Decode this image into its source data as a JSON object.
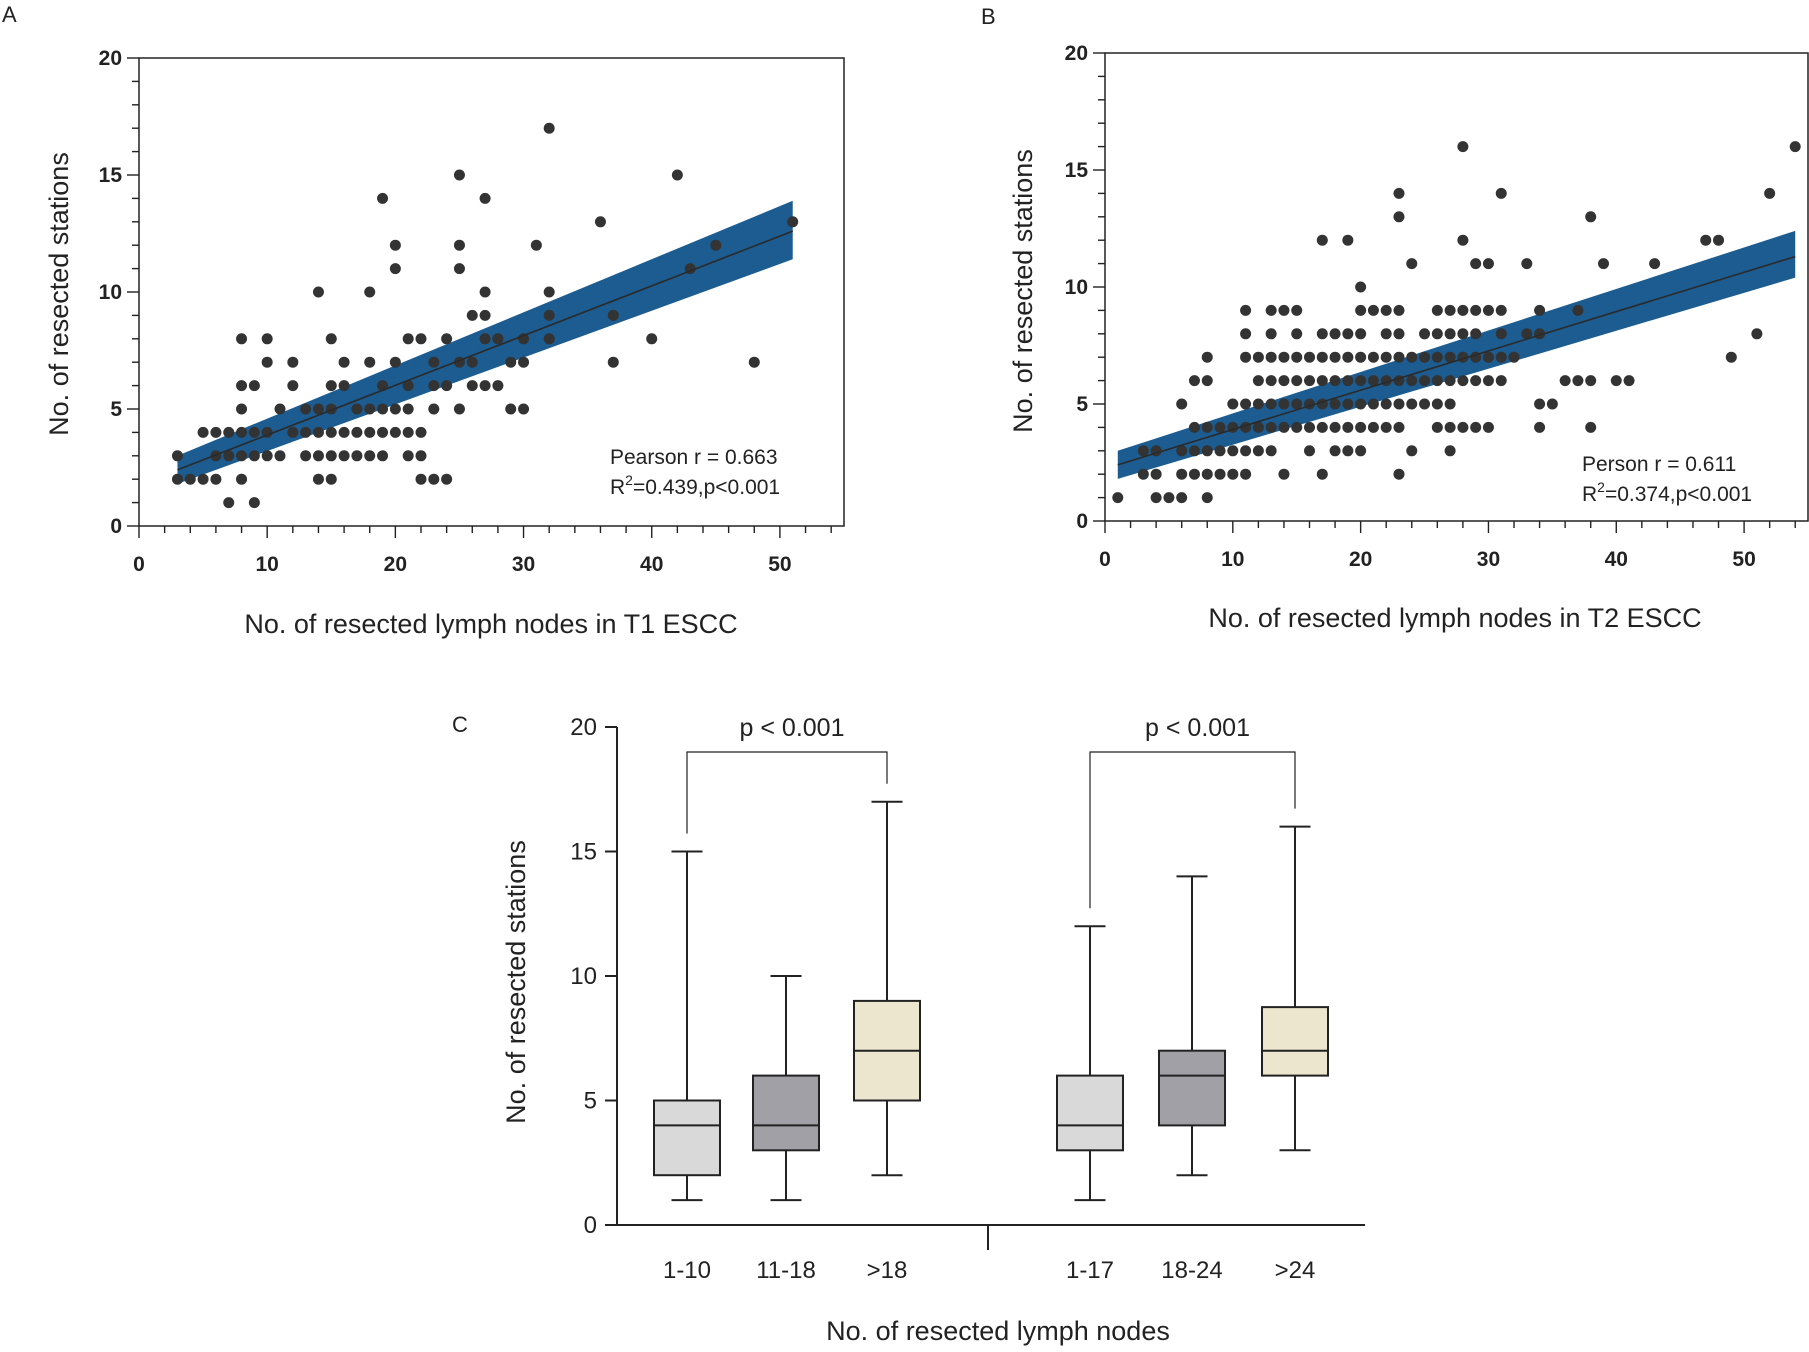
{
  "panels": {
    "A": {
      "label": "A"
    },
    "B": {
      "label": "B"
    },
    "C": {
      "label": "C"
    }
  },
  "colors": {
    "ci_band": "#1c5c91",
    "point": "#333333",
    "axis": "#222222",
    "box_light": "#d9d9d9",
    "box_dark": "#a0a0a6",
    "box_cream": "#ede6ce"
  },
  "chart_data": [
    {
      "id": "A",
      "type": "scatter",
      "xlabel": "No. of resected lymph nodes in T1 ESCC",
      "ylabel": "No. of resected stations",
      "xlim": [
        0,
        55
      ],
      "ylim": [
        0,
        20
      ],
      "xticks": [
        0,
        10,
        20,
        30,
        40,
        50
      ],
      "yticks": [
        0,
        5,
        10,
        15,
        20
      ],
      "annotation": {
        "pearson": "Pearson r = 0.663",
        "r2_prefix": "R",
        "r2_sup": "2",
        "r2_rest": "=0.439,p<0.001"
      },
      "fit": {
        "x_range": [
          3,
          51
        ],
        "y_start": 2.4,
        "y_end": 12.6,
        "band_lower": [
          1.8,
          11.4
        ],
        "band_upper": [
          3.0,
          13.9
        ]
      },
      "points": [
        [
          3,
          3
        ],
        [
          3,
          2
        ],
        [
          4,
          2
        ],
        [
          5,
          4
        ],
        [
          5,
          2
        ],
        [
          6,
          4
        ],
        [
          6,
          3
        ],
        [
          6,
          2
        ],
        [
          7,
          4
        ],
        [
          7,
          3
        ],
        [
          7,
          1
        ],
        [
          8,
          8
        ],
        [
          8,
          6
        ],
        [
          8,
          5
        ],
        [
          8,
          4
        ],
        [
          8,
          3
        ],
        [
          8,
          2
        ],
        [
          9,
          6
        ],
        [
          9,
          4
        ],
        [
          9,
          3
        ],
        [
          9,
          1
        ],
        [
          10,
          8
        ],
        [
          10,
          7
        ],
        [
          10,
          4
        ],
        [
          10,
          3
        ],
        [
          11,
          5
        ],
        [
          11,
          3
        ],
        [
          12,
          7
        ],
        [
          12,
          6
        ],
        [
          12,
          4
        ],
        [
          13,
          5
        ],
        [
          13,
          4
        ],
        [
          13,
          3
        ],
        [
          14,
          10
        ],
        [
          14,
          5
        ],
        [
          14,
          4
        ],
        [
          14,
          3
        ],
        [
          14,
          2
        ],
        [
          15,
          8
        ],
        [
          15,
          6
        ],
        [
          15,
          5
        ],
        [
          15,
          4
        ],
        [
          15,
          3
        ],
        [
          15,
          2
        ],
        [
          16,
          7
        ],
        [
          16,
          6
        ],
        [
          16,
          4
        ],
        [
          16,
          3
        ],
        [
          17,
          5
        ],
        [
          17,
          4
        ],
        [
          17,
          3
        ],
        [
          18,
          10
        ],
        [
          18,
          7
        ],
        [
          18,
          5
        ],
        [
          18,
          4
        ],
        [
          18,
          3
        ],
        [
          19,
          14
        ],
        [
          19,
          6
        ],
        [
          19,
          5
        ],
        [
          19,
          4
        ],
        [
          19,
          3
        ],
        [
          20,
          12
        ],
        [
          20,
          11
        ],
        [
          20,
          7
        ],
        [
          20,
          5
        ],
        [
          20,
          4
        ],
        [
          21,
          8
        ],
        [
          21,
          6
        ],
        [
          21,
          5
        ],
        [
          21,
          4
        ],
        [
          21,
          3
        ],
        [
          22,
          8
        ],
        [
          22,
          4
        ],
        [
          22,
          3
        ],
        [
          22,
          2
        ],
        [
          23,
          7
        ],
        [
          23,
          6
        ],
        [
          23,
          5
        ],
        [
          23,
          2
        ],
        [
          24,
          8
        ],
        [
          24,
          6
        ],
        [
          24,
          2
        ],
        [
          25,
          15
        ],
        [
          25,
          12
        ],
        [
          25,
          11
        ],
        [
          25,
          7
        ],
        [
          25,
          5
        ],
        [
          26,
          9
        ],
        [
          26,
          7
        ],
        [
          26,
          6
        ],
        [
          27,
          14
        ],
        [
          27,
          10
        ],
        [
          27,
          9
        ],
        [
          27,
          8
        ],
        [
          27,
          6
        ],
        [
          28,
          8
        ],
        [
          28,
          6
        ],
        [
          29,
          7
        ],
        [
          29,
          5
        ],
        [
          30,
          8
        ],
        [
          30,
          7
        ],
        [
          30,
          5
        ],
        [
          31,
          12
        ],
        [
          32,
          17
        ],
        [
          32,
          10
        ],
        [
          32,
          9
        ],
        [
          32,
          8
        ],
        [
          36,
          13
        ],
        [
          37,
          9
        ],
        [
          37,
          7
        ],
        [
          40,
          8
        ],
        [
          42,
          15
        ],
        [
          43,
          11
        ],
        [
          45,
          12
        ],
        [
          48,
          7
        ],
        [
          51,
          13
        ]
      ]
    },
    {
      "id": "B",
      "type": "scatter",
      "xlabel": "No. of resected lymph nodes in T2 ESCC",
      "ylabel": "No. of resected stations",
      "xlim": [
        0,
        55
      ],
      "ylim": [
        0,
        20
      ],
      "xticks": [
        0,
        10,
        20,
        30,
        40,
        50
      ],
      "yticks": [
        0,
        5,
        10,
        15,
        20
      ],
      "annotation": {
        "pearson": "Person r = 0.611",
        "r2_prefix": "R",
        "r2_sup": "2",
        "r2_rest": "=0.374,p<0.001"
      },
      "fit": {
        "x_range": [
          1,
          54
        ],
        "y_start": 2.4,
        "y_end": 11.3,
        "band_lower": [
          1.8,
          10.4
        ],
        "band_upper": [
          3.0,
          12.4
        ]
      },
      "points": [
        [
          1,
          1
        ],
        [
          3,
          3
        ],
        [
          3,
          2
        ],
        [
          4,
          3
        ],
        [
          4,
          2
        ],
        [
          4,
          1
        ],
        [
          5,
          1
        ],
        [
          6,
          5
        ],
        [
          6,
          3
        ],
        [
          6,
          2
        ],
        [
          6,
          1
        ],
        [
          7,
          6
        ],
        [
          7,
          4
        ],
        [
          7,
          3
        ],
        [
          7,
          2
        ],
        [
          8,
          7
        ],
        [
          8,
          6
        ],
        [
          8,
          4
        ],
        [
          8,
          3
        ],
        [
          8,
          2
        ],
        [
          8,
          1
        ],
        [
          9,
          4
        ],
        [
          9,
          3
        ],
        [
          9,
          2
        ],
        [
          10,
          5
        ],
        [
          10,
          4
        ],
        [
          10,
          3
        ],
        [
          10,
          2
        ],
        [
          11,
          9
        ],
        [
          11,
          8
        ],
        [
          11,
          7
        ],
        [
          11,
          5
        ],
        [
          11,
          4
        ],
        [
          11,
          3
        ],
        [
          11,
          2
        ],
        [
          12,
          7
        ],
        [
          12,
          6
        ],
        [
          12,
          5
        ],
        [
          12,
          4
        ],
        [
          12,
          3
        ],
        [
          13,
          9
        ],
        [
          13,
          8
        ],
        [
          13,
          7
        ],
        [
          13,
          6
        ],
        [
          13,
          5
        ],
        [
          13,
          4
        ],
        [
          13,
          3
        ],
        [
          14,
          9
        ],
        [
          14,
          7
        ],
        [
          14,
          6
        ],
        [
          14,
          5
        ],
        [
          14,
          4
        ],
        [
          14,
          2
        ],
        [
          15,
          9
        ],
        [
          15,
          8
        ],
        [
          15,
          7
        ],
        [
          15,
          6
        ],
        [
          15,
          5
        ],
        [
          15,
          4
        ],
        [
          16,
          7
        ],
        [
          16,
          6
        ],
        [
          16,
          5
        ],
        [
          16,
          4
        ],
        [
          16,
          3
        ],
        [
          17,
          12
        ],
        [
          17,
          8
        ],
        [
          17,
          7
        ],
        [
          17,
          6
        ],
        [
          17,
          5
        ],
        [
          17,
          4
        ],
        [
          17,
          2
        ],
        [
          18,
          8
        ],
        [
          18,
          7
        ],
        [
          18,
          6
        ],
        [
          18,
          5
        ],
        [
          18,
          4
        ],
        [
          18,
          3
        ],
        [
          19,
          12
        ],
        [
          19,
          8
        ],
        [
          19,
          7
        ],
        [
          19,
          6
        ],
        [
          19,
          5
        ],
        [
          19,
          4
        ],
        [
          19,
          3
        ],
        [
          20,
          10
        ],
        [
          20,
          9
        ],
        [
          20,
          8
        ],
        [
          20,
          7
        ],
        [
          20,
          6
        ],
        [
          20,
          5
        ],
        [
          20,
          4
        ],
        [
          20,
          3
        ],
        [
          21,
          9
        ],
        [
          21,
          7
        ],
        [
          21,
          6
        ],
        [
          21,
          5
        ],
        [
          21,
          4
        ],
        [
          22,
          9
        ],
        [
          22,
          8
        ],
        [
          22,
          7
        ],
        [
          22,
          6
        ],
        [
          22,
          5
        ],
        [
          22,
          4
        ],
        [
          23,
          14
        ],
        [
          23,
          13
        ],
        [
          23,
          9
        ],
        [
          23,
          8
        ],
        [
          23,
          7
        ],
        [
          23,
          6
        ],
        [
          23,
          5
        ],
        [
          23,
          4
        ],
        [
          23,
          2
        ],
        [
          24,
          11
        ],
        [
          24,
          7
        ],
        [
          24,
          6
        ],
        [
          24,
          5
        ],
        [
          24,
          3
        ],
        [
          25,
          8
        ],
        [
          25,
          7
        ],
        [
          25,
          6
        ],
        [
          25,
          5
        ],
        [
          26,
          9
        ],
        [
          26,
          8
        ],
        [
          26,
          7
        ],
        [
          26,
          6
        ],
        [
          26,
          5
        ],
        [
          26,
          4
        ],
        [
          27,
          9
        ],
        [
          27,
          8
        ],
        [
          27,
          7
        ],
        [
          27,
          6
        ],
        [
          27,
          5
        ],
        [
          27,
          4
        ],
        [
          27,
          3
        ],
        [
          28,
          16
        ],
        [
          28,
          12
        ],
        [
          28,
          9
        ],
        [
          28,
          8
        ],
        [
          28,
          7
        ],
        [
          28,
          6
        ],
        [
          28,
          4
        ],
        [
          29,
          11
        ],
        [
          29,
          9
        ],
        [
          29,
          8
        ],
        [
          29,
          7
        ],
        [
          29,
          6
        ],
        [
          29,
          4
        ],
        [
          30,
          11
        ],
        [
          30,
          9
        ],
        [
          30,
          7
        ],
        [
          30,
          6
        ],
        [
          30,
          4
        ],
        [
          31,
          14
        ],
        [
          31,
          9
        ],
        [
          31,
          8
        ],
        [
          31,
          7
        ],
        [
          31,
          6
        ],
        [
          32,
          7
        ],
        [
          33,
          11
        ],
        [
          33,
          8
        ],
        [
          34,
          9
        ],
        [
          34,
          8
        ],
        [
          34,
          5
        ],
        [
          34,
          4
        ],
        [
          35,
          5
        ],
        [
          36,
          6
        ],
        [
          37,
          9
        ],
        [
          37,
          6
        ],
        [
          38,
          13
        ],
        [
          38,
          6
        ],
        [
          38,
          4
        ],
        [
          39,
          11
        ],
        [
          40,
          6
        ],
        [
          41,
          6
        ],
        [
          43,
          11
        ],
        [
          47,
          12
        ],
        [
          48,
          12
        ],
        [
          49,
          7
        ],
        [
          51,
          8
        ],
        [
          52,
          14
        ],
        [
          54,
          16
        ]
      ]
    },
    {
      "id": "C",
      "type": "box",
      "xlabel": "No. of resected lymph nodes",
      "ylabel": "No. of resected stations",
      "ylim": [
        0,
        20
      ],
      "yticks": [
        0,
        5,
        10,
        15,
        20
      ],
      "groups": [
        {
          "category": "1-10",
          "min": 1,
          "q1": 2,
          "median": 4,
          "q3": 5,
          "max": 15,
          "color": "light"
        },
        {
          "category": "11-18",
          "min": 1,
          "q1": 3,
          "median": 4,
          "q3": 6,
          "max": 10,
          "color": "dark"
        },
        {
          "category": ">18",
          "min": 2,
          "q1": 5,
          "median": 7,
          "q3": 9,
          "max": 17,
          "color": "cream"
        },
        {
          "category": "1-17",
          "min": 1,
          "q1": 3,
          "median": 4,
          "q3": 6,
          "max": 12,
          "color": "light"
        },
        {
          "category": "18-24",
          "min": 2,
          "q1": 4,
          "median": 6,
          "q3": 7,
          "max": 14,
          "color": "dark"
        },
        {
          "category": ">24",
          "min": 3,
          "q1": 6,
          "median": 7,
          "q3": 8.75,
          "max": 16,
          "color": "cream"
        }
      ],
      "comparisons": [
        {
          "from": 0,
          "to": 2,
          "label": "p < 0.001"
        },
        {
          "from": 3,
          "to": 5,
          "label": "p < 0.001"
        }
      ]
    }
  ]
}
